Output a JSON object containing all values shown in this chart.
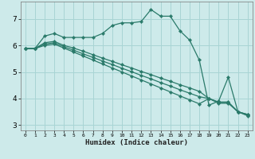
{
  "xlabel": "Humidex (Indice chaleur)",
  "background_color": "#cdeaea",
  "grid_color": "#a8d4d4",
  "line_color": "#2a7a6a",
  "xlim": [
    -0.5,
    23.5
  ],
  "ylim": [
    2.8,
    7.65
  ],
  "xticks": [
    0,
    1,
    2,
    3,
    4,
    5,
    6,
    7,
    8,
    9,
    10,
    11,
    12,
    13,
    14,
    15,
    16,
    17,
    18,
    19,
    20,
    21,
    22,
    23
  ],
  "yticks": [
    3,
    4,
    5,
    6,
    7
  ],
  "series": [
    {
      "x": [
        0,
        1,
        2,
        3,
        4,
        5,
        6,
        7,
        8,
        9,
        10,
        11,
        12,
        13,
        14,
        15,
        16,
        17,
        18,
        19,
        20,
        21,
        22,
        23
      ],
      "y": [
        5.88,
        5.88,
        6.35,
        6.45,
        6.3,
        6.3,
        6.3,
        6.3,
        6.45,
        6.75,
        6.85,
        6.85,
        6.9,
        7.35,
        7.1,
        7.1,
        6.55,
        6.2,
        5.45,
        3.75,
        3.9,
        4.8,
        3.5,
        3.4
      ]
    },
    {
      "x": [
        0,
        1,
        2,
        3,
        4,
        5,
        6,
        7,
        8,
        9,
        10,
        11,
        12,
        13,
        14,
        15,
        16,
        17,
        18,
        19,
        20,
        21,
        22,
        23
      ],
      "y": [
        5.88,
        5.88,
        6.1,
        6.15,
        6.0,
        5.9,
        5.78,
        5.65,
        5.52,
        5.4,
        5.27,
        5.15,
        5.02,
        4.9,
        4.77,
        4.65,
        4.52,
        4.4,
        4.27,
        4.0,
        3.87,
        3.87,
        3.5,
        3.4
      ]
    },
    {
      "x": [
        0,
        1,
        2,
        3,
        4,
        5,
        6,
        7,
        8,
        9,
        10,
        11,
        12,
        13,
        14,
        15,
        16,
        17,
        18,
        19,
        20,
        21,
        22,
        23
      ],
      "y": [
        5.88,
        5.88,
        6.05,
        6.1,
        5.95,
        5.82,
        5.68,
        5.55,
        5.41,
        5.28,
        5.14,
        5.01,
        4.87,
        4.74,
        4.6,
        4.47,
        4.33,
        4.2,
        4.07,
        4.0,
        3.85,
        3.85,
        3.5,
        3.38
      ]
    },
    {
      "x": [
        0,
        1,
        2,
        3,
        4,
        5,
        6,
        7,
        8,
        9,
        10,
        11,
        12,
        13,
        14,
        15,
        16,
        17,
        18,
        19,
        20,
        21,
        22,
        23
      ],
      "y": [
        5.88,
        5.88,
        6.0,
        6.05,
        5.9,
        5.75,
        5.6,
        5.45,
        5.3,
        5.15,
        5.0,
        4.85,
        4.7,
        4.55,
        4.4,
        4.25,
        4.1,
        3.95,
        3.8,
        4.0,
        3.82,
        3.82,
        3.5,
        3.35
      ]
    }
  ]
}
